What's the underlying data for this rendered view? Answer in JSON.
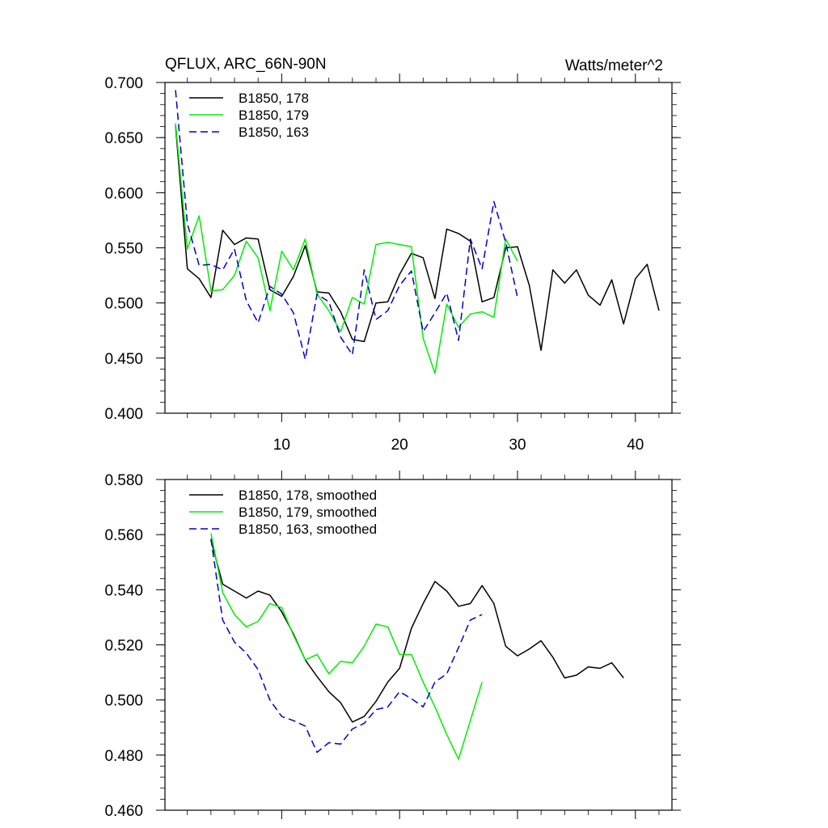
{
  "figure": {
    "top_title_left": "QFLUX, ARC_66N-90N",
    "top_title_right": "Watts/meter^2"
  },
  "colors": {
    "b178": "#000000",
    "b179": "#00ee00",
    "b163": "#0000cc",
    "axis": "#000000"
  },
  "chart_data": [
    {
      "type": "line",
      "name": "raw",
      "title": "QFLUX, ARC_66N-90N",
      "units": "Watts/meter^2",
      "xlim": [
        0.1,
        43.1
      ],
      "ylim": [
        0.4,
        0.7
      ],
      "x_major_ticks": [
        10,
        20,
        30,
        40
      ],
      "x_tick_labels": [
        "10",
        "20",
        "30",
        "40"
      ],
      "y_major_ticks": [
        0.4,
        0.45,
        0.5,
        0.55,
        0.6,
        0.65,
        0.7
      ],
      "y_tick_labels": [
        "0.400",
        "0.450",
        "0.500",
        "0.550",
        "0.600",
        "0.650",
        "0.700"
      ],
      "series": [
        {
          "name": "B1850, 178",
          "color_key": "b178",
          "dash": "solid",
          "x_start": 1,
          "values": [
            0.661,
            0.531,
            0.522,
            0.505,
            0.566,
            0.553,
            0.559,
            0.558,
            0.512,
            0.506,
            0.524,
            0.552,
            0.51,
            0.509,
            0.492,
            0.467,
            0.465,
            0.5,
            0.501,
            0.526,
            0.545,
            0.541,
            0.504,
            0.567,
            0.563,
            0.556,
            0.501,
            0.505,
            0.55,
            0.551,
            0.516,
            0.457,
            0.53,
            0.518,
            0.53,
            0.507,
            0.498,
            0.521,
            0.481,
            0.522,
            0.535,
            0.493
          ]
        },
        {
          "name": "B1850, 179",
          "color_key": "b179",
          "dash": "solid",
          "x_start": 1,
          "values": [
            0.663,
            0.549,
            0.579,
            0.511,
            0.512,
            0.525,
            0.556,
            0.541,
            0.493,
            0.547,
            0.53,
            0.558,
            0.508,
            0.493,
            0.474,
            0.505,
            0.499,
            0.553,
            0.555,
            0.553,
            0.551,
            0.468,
            0.436,
            0.499,
            0.478,
            0.49,
            0.492,
            0.487,
            0.558,
            0.538
          ]
        },
        {
          "name": "B1850, 163",
          "color_key": "b163",
          "dash": "dashed",
          "x_start": 1,
          "values": [
            0.693,
            0.572,
            0.534,
            0.535,
            0.53,
            0.549,
            0.502,
            0.482,
            0.515,
            0.508,
            0.491,
            0.449,
            0.508,
            0.501,
            0.469,
            0.453,
            0.53,
            0.485,
            0.493,
            0.516,
            0.529,
            0.474,
            0.491,
            0.509,
            0.466,
            0.558,
            0.531,
            0.592,
            0.555,
            0.505
          ]
        }
      ]
    },
    {
      "type": "line",
      "name": "smoothed",
      "xlim": [
        0.1,
        43.1
      ],
      "ylim": [
        0.46,
        0.58
      ],
      "x_major_ticks": [
        10,
        20,
        30,
        40
      ],
      "y_major_ticks": [
        0.46,
        0.48,
        0.5,
        0.52,
        0.54,
        0.56,
        0.58
      ],
      "y_tick_labels": [
        "0.460",
        "0.480",
        "0.500",
        "0.520",
        "0.540",
        "0.560",
        "0.580"
      ],
      "series": [
        {
          "name": "B1850, 178, smoothed",
          "color_key": "b178",
          "dash": "solid",
          "x_start": 4,
          "values": [
            0.558,
            0.542,
            0.5395,
            0.537,
            0.5395,
            0.538,
            0.532,
            0.524,
            0.5145,
            0.5085,
            0.503,
            0.499,
            0.492,
            0.494,
            0.4995,
            0.5065,
            0.5115,
            0.526,
            0.535,
            0.543,
            0.5395,
            0.534,
            0.535,
            0.5415,
            0.535,
            0.5195,
            0.516,
            0.5185,
            0.5215,
            0.5155,
            0.508,
            0.509,
            0.512,
            0.5115,
            0.5135,
            0.508
          ]
        },
        {
          "name": "B1850, 179, smoothed",
          "color_key": "b179",
          "dash": "solid",
          "x_start": 4,
          "values": [
            0.5605,
            0.539,
            0.531,
            0.5265,
            0.5285,
            0.535,
            0.5335,
            0.5235,
            0.5145,
            0.5165,
            0.5095,
            0.514,
            0.5135,
            0.5195,
            0.5275,
            0.5265,
            0.5165,
            0.5165,
            0.5065,
            0.4975,
            0.4875,
            0.4785,
            0.4925,
            0.5065
          ]
        },
        {
          "name": "B1850, 163, smoothed",
          "color_key": "b163",
          "dash": "dashed",
          "x_start": 4,
          "values": [
            0.5585,
            0.529,
            0.521,
            0.517,
            0.511,
            0.5,
            0.494,
            0.4925,
            0.4905,
            0.481,
            0.4845,
            0.484,
            0.4895,
            0.4915,
            0.4965,
            0.4975,
            0.503,
            0.5005,
            0.4975,
            0.5065,
            0.5095,
            0.519,
            0.529,
            0.531
          ]
        }
      ]
    }
  ]
}
